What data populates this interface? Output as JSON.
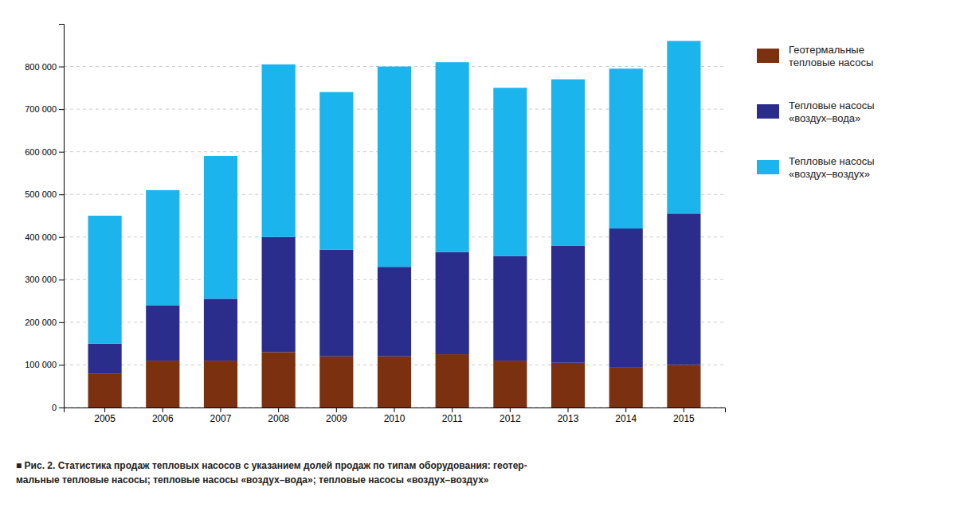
{
  "chart_data": {
    "type": "bar",
    "stacked": true,
    "title": "■ Рис. 2. Статистика продаж тепловых насосов с указанием долей продаж по типам оборудования: геотер-\nмальные тепловые насосы; тепловые насосы «воздух–вода»; тепловые насосы «воздух–воздух»",
    "categories": [
      "2005",
      "2006",
      "2007",
      "2008",
      "2009",
      "2010",
      "2011",
      "2012",
      "2013",
      "2014",
      "2015"
    ],
    "series": [
      {
        "name": "Геотермальные\nтепловые насосы",
        "color": "#7B3010",
        "values": [
          80000,
          110000,
          110000,
          130000,
          120000,
          120000,
          125000,
          110000,
          105000,
          95000,
          100000
        ]
      },
      {
        "name": "Тепловые насосы\n«воздух–вода»",
        "color": "#2B2D8C",
        "values": [
          70000,
          130000,
          145000,
          270000,
          250000,
          210000,
          240000,
          245000,
          275000,
          325000,
          355000
        ]
      },
      {
        "name": "Тепловые насосы\n«воздух–воздух»",
        "color": "#1BB4EC",
        "values": [
          300000,
          270000,
          335000,
          405000,
          370000,
          470000,
          445000,
          395000,
          390000,
          375000,
          405000
        ]
      }
    ],
    "ylim": [
      0,
      900000
    ],
    "yticks": [
      0,
      {
        "value": 100000,
        "label": "100 000"
      },
      {
        "value": 200000,
        "label": "200 000"
      },
      {
        "value": 300000,
        "label": "300 000"
      },
      {
        "value": 400000,
        "label": "400 000"
      },
      {
        "value": 500000,
        "label": "500 000"
      },
      {
        "value": 600000,
        "label": "600 000"
      },
      {
        "value": 700000,
        "label": "700 000"
      },
      {
        "value": 800000,
        "label": "800 000"
      }
    ],
    "grid": true,
    "legend": "right"
  }
}
